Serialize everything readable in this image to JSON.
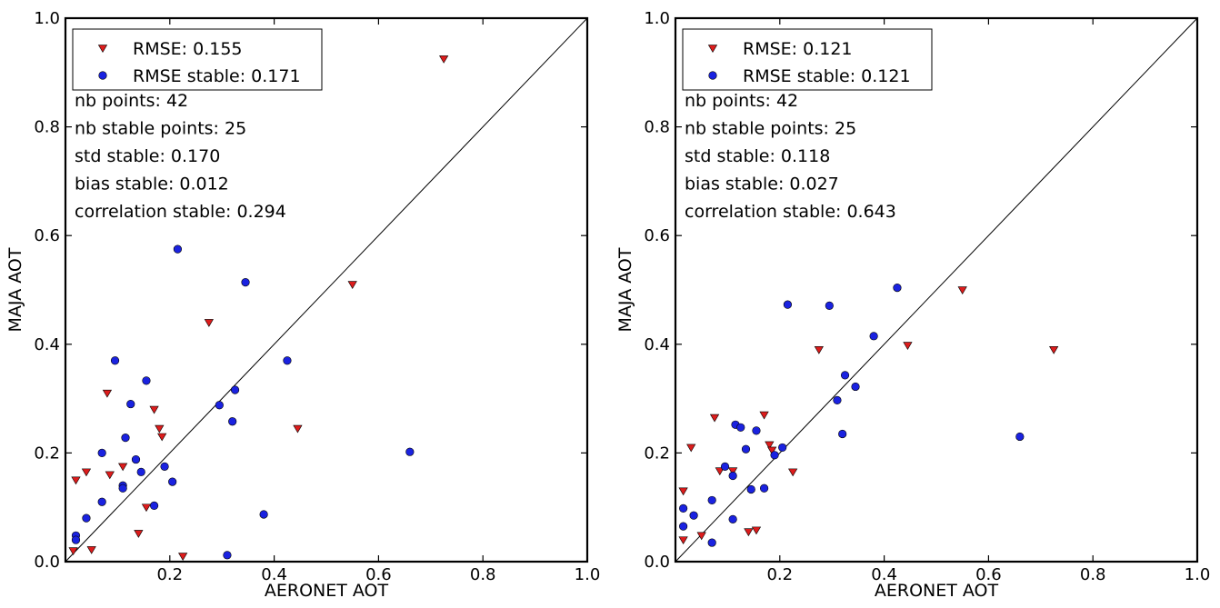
{
  "chart_data": [
    {
      "type": "scatter",
      "xlabel": "AERONET AOT",
      "ylabel": "MAJA AOT",
      "xlim": [
        0,
        1.0
      ],
      "ylim": [
        0,
        1.0
      ],
      "xticks": [
        "0.2",
        "0.4",
        "0.6",
        "0.8",
        "1.0"
      ],
      "yticks": [
        "0.0",
        "0.2",
        "0.4",
        "0.6",
        "0.8",
        "1.0"
      ],
      "grid": false,
      "legend_position": "top-left",
      "reference_line": "y = x",
      "legend": [
        "RMSE: 0.155",
        "RMSE stable: 0.171"
      ],
      "stats": [
        "nb points: 42",
        "nb stable points: 25",
        "std stable: 0.170",
        "bias stable: 0.012",
        "correlation stable: 0.294"
      ],
      "series": [
        {
          "name": "RMSE: 0.155",
          "color": "#dd1c1c",
          "marker": "triangle-down",
          "points": [
            [
              0.015,
              0.02
            ],
            [
              0.02,
              0.15
            ],
            [
              0.04,
              0.165
            ],
            [
              0.05,
              0.022
            ],
            [
              0.08,
              0.31
            ],
            [
              0.085,
              0.16
            ],
            [
              0.11,
              0.175
            ],
            [
              0.14,
              0.052
            ],
            [
              0.155,
              0.1
            ],
            [
              0.17,
              0.28
            ],
            [
              0.18,
              0.245
            ],
            [
              0.185,
              0.23
            ],
            [
              0.225,
              0.01
            ],
            [
              0.275,
              0.44
            ],
            [
              0.445,
              0.245
            ],
            [
              0.55,
              0.51
            ],
            [
              0.725,
              0.925
            ]
          ]
        },
        {
          "name": "RMSE stable: 0.171",
          "color": "#1a22e0",
          "marker": "circle",
          "points": [
            [
              0.02,
              0.048
            ],
            [
              0.02,
              0.04
            ],
            [
              0.04,
              0.08
            ],
            [
              0.07,
              0.11
            ],
            [
              0.07,
              0.2
            ],
            [
              0.095,
              0.37
            ],
            [
              0.11,
              0.14
            ],
            [
              0.11,
              0.135
            ],
            [
              0.115,
              0.228
            ],
            [
              0.125,
              0.29
            ],
            [
              0.135,
              0.188
            ],
            [
              0.145,
              0.165
            ],
            [
              0.155,
              0.333
            ],
            [
              0.17,
              0.103
            ],
            [
              0.19,
              0.175
            ],
            [
              0.205,
              0.147
            ],
            [
              0.215,
              0.575
            ],
            [
              0.295,
              0.288
            ],
            [
              0.31,
              0.012
            ],
            [
              0.32,
              0.258
            ],
            [
              0.325,
              0.316
            ],
            [
              0.345,
              0.514
            ],
            [
              0.38,
              0.087
            ],
            [
              0.425,
              0.37
            ],
            [
              0.66,
              0.202
            ]
          ]
        }
      ]
    },
    {
      "type": "scatter",
      "xlabel": "AERONET AOT",
      "ylabel": "MAJA AOT",
      "xlim": [
        0,
        1.0
      ],
      "ylim": [
        0,
        1.0
      ],
      "xticks": [
        "0.2",
        "0.4",
        "0.6",
        "0.8",
        "1.0"
      ],
      "yticks": [
        "0.0",
        "0.2",
        "0.4",
        "0.6",
        "0.8",
        "1.0"
      ],
      "grid": false,
      "legend_position": "top-left",
      "reference_line": "y = x",
      "legend": [
        "RMSE: 0.121",
        "RMSE stable: 0.121"
      ],
      "stats": [
        "nb points: 42",
        "nb stable points: 25",
        "std stable: 0.118",
        "bias stable: 0.027",
        "correlation stable: 0.643"
      ],
      "series": [
        {
          "name": "RMSE: 0.121",
          "color": "#dd1c1c",
          "marker": "triangle-down",
          "points": [
            [
              0.015,
              0.04
            ],
            [
              0.015,
              0.13
            ],
            [
              0.03,
              0.21
            ],
            [
              0.05,
              0.048
            ],
            [
              0.075,
              0.265
            ],
            [
              0.085,
              0.167
            ],
            [
              0.11,
              0.167
            ],
            [
              0.14,
              0.055
            ],
            [
              0.155,
              0.058
            ],
            [
              0.17,
              0.27
            ],
            [
              0.18,
              0.215
            ],
            [
              0.185,
              0.205
            ],
            [
              0.225,
              0.165
            ],
            [
              0.275,
              0.39
            ],
            [
              0.445,
              0.398
            ],
            [
              0.55,
              0.5
            ],
            [
              0.725,
              0.39
            ]
          ]
        },
        {
          "name": "RMSE stable: 0.121",
          "color": "#1a22e0",
          "marker": "circle",
          "points": [
            [
              0.015,
              0.098
            ],
            [
              0.015,
              0.065
            ],
            [
              0.035,
              0.085
            ],
            [
              0.07,
              0.035
            ],
            [
              0.07,
              0.113
            ],
            [
              0.095,
              0.175
            ],
            [
              0.11,
              0.158
            ],
            [
              0.11,
              0.078
            ],
            [
              0.115,
              0.252
            ],
            [
              0.125,
              0.247
            ],
            [
              0.135,
              0.207
            ],
            [
              0.145,
              0.133
            ],
            [
              0.155,
              0.241
            ],
            [
              0.17,
              0.135
            ],
            [
              0.19,
              0.196
            ],
            [
              0.205,
              0.21
            ],
            [
              0.215,
              0.473
            ],
            [
              0.295,
              0.471
            ],
            [
              0.31,
              0.297
            ],
            [
              0.32,
              0.235
            ],
            [
              0.325,
              0.343
            ],
            [
              0.345,
              0.322
            ],
            [
              0.38,
              0.415
            ],
            [
              0.425,
              0.504
            ],
            [
              0.66,
              0.23
            ]
          ]
        }
      ]
    }
  ]
}
